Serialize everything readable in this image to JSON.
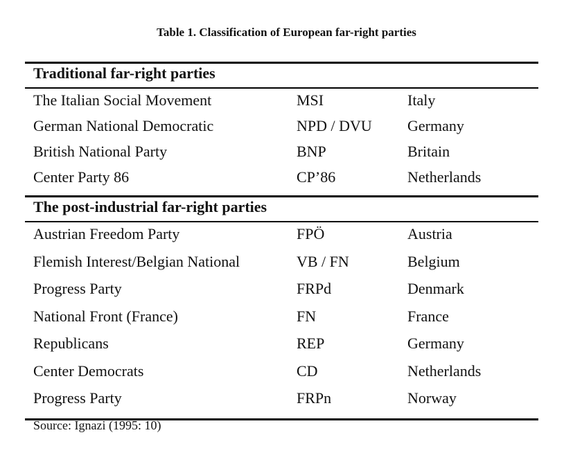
{
  "title": "Table 1. Classification of European far-right parties",
  "sections": [
    {
      "heading": "Traditional far-right parties",
      "rows": [
        [
          "The Italian Social Movement",
          "MSI",
          "Italy"
        ],
        [
          "German National Democratic",
          "NPD /  DVU",
          "Germany"
        ],
        [
          "British National Party",
          "BNP",
          "Britain"
        ],
        [
          "Center Party 86",
          "CP’86",
          "Netherlands"
        ]
      ]
    },
    {
      "heading": "The post-industrial far-right parties",
      "rows": [
        [
          "Austrian Freedom Party",
          "FPÖ",
          "Austria"
        ],
        [
          "Flemish Interest/Belgian National",
          "VB / FN",
          "Belgium"
        ],
        [
          "Progress Party",
          "FRPd",
          "Denmark"
        ],
        [
          "National Front (France)",
          "FN",
          "France"
        ],
        [
          "Republicans",
          "REP",
          "Germany"
        ],
        [
          "Center Democrats",
          "CD",
          "Netherlands"
        ],
        [
          "Progress Party",
          "FRPn",
          "Norway"
        ]
      ]
    }
  ],
  "source": "Source: Ignazi (1995: 10)"
}
